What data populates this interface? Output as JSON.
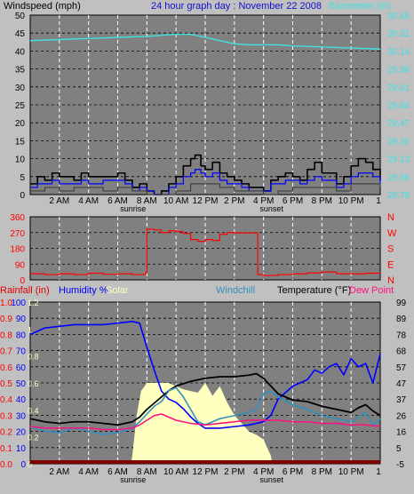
{
  "page": {
    "title": "24 hour graph day : November 22 2008",
    "colors": {
      "plot_bg": "#808080",
      "frame_bg": "#c0c0c0",
      "cyan": "#40e0e0",
      "blue": "#0000ff",
      "red": "#ff0000",
      "pink": "#ff1080",
      "black": "#000000",
      "yellow": "#ffffc0",
      "steel": "#3090c0",
      "darkred": "#800000"
    }
  },
  "x_axis": {
    "tick_labels": [
      "2 AM",
      "4 AM",
      "6 AM",
      "8 AM",
      "10 AM",
      "12 PM",
      "2 PM",
      "4 PM",
      "6 PM",
      "8 PM",
      "10 PM"
    ],
    "end_label": "1",
    "sunrise_label": "sunrise",
    "sunset_label": "sunset",
    "sunrise_hour": 7.05,
    "sunset_hour": 16.55
  },
  "chart_data": [
    {
      "type": "line",
      "title": "",
      "left_label": "Windspeed (mph)",
      "right_label": "Barometer (in)",
      "y_left": {
        "ticks": [
          0,
          5,
          10,
          15,
          20,
          25,
          30,
          35,
          40,
          45,
          50
        ],
        "range": [
          0,
          50
        ]
      },
      "y_right": {
        "ticks": [
          28.79,
          28.96,
          29.13,
          29.3,
          29.47,
          29.64,
          29.81,
          29.98,
          30.14,
          30.31,
          30.48
        ],
        "range": [
          28.79,
          30.48
        ]
      },
      "series": [
        {
          "name": "Barometer",
          "axis": "right",
          "color": "cyan",
          "x": [
            0,
            2,
            4,
            6,
            8,
            10,
            11,
            12,
            13,
            14,
            15,
            16,
            17,
            18,
            20,
            22,
            24
          ],
          "y": [
            30.24,
            30.25,
            30.26,
            30.27,
            30.28,
            30.3,
            30.3,
            30.27,
            30.24,
            30.21,
            30.2,
            30.2,
            30.2,
            30.19,
            30.18,
            30.17,
            30.16
          ]
        },
        {
          "name": "Wind gust",
          "axis": "left",
          "color": "black",
          "x": [
            0,
            0.5,
            1,
            1.5,
            2,
            3,
            3.5,
            4,
            5,
            6,
            6.5,
            7,
            7.5,
            8,
            8.5,
            9,
            9.5,
            10,
            10.5,
            11,
            11.3,
            11.7,
            12,
            12.5,
            13,
            13.5,
            14,
            14.5,
            15,
            16,
            16.5,
            17,
            17.5,
            18,
            18.5,
            19,
            19.5,
            20,
            21,
            21.5,
            22,
            22.5,
            23,
            23.5,
            24
          ],
          "y": [
            3,
            5,
            4,
            6,
            5,
            4,
            6,
            5,
            5,
            6,
            4,
            2,
            3,
            1,
            0,
            1,
            3,
            5,
            8,
            10,
            11,
            8,
            7,
            9,
            6,
            5,
            4,
            3,
            2,
            1,
            4,
            5,
            6,
            5,
            4,
            7,
            9,
            6,
            3,
            5,
            8,
            10,
            9,
            7,
            4
          ]
        },
        {
          "name": "Wind speed",
          "axis": "left",
          "color": "blue",
          "x": [
            0,
            0.5,
            1,
            1.5,
            2,
            3,
            3.5,
            4,
            5,
            6,
            6.5,
            7,
            7.5,
            8,
            8.5,
            9,
            9.5,
            10,
            10.5,
            11,
            11.3,
            11.7,
            12,
            12.5,
            13,
            13.5,
            14,
            14.5,
            15,
            16,
            16.5,
            17,
            17.5,
            18,
            18.5,
            19,
            19.5,
            20,
            21,
            21.5,
            22,
            22.5,
            23,
            23.5,
            24
          ],
          "y": [
            2,
            3,
            3,
            4,
            3,
            3,
            4,
            3,
            4,
            4,
            3,
            1,
            2,
            1,
            0,
            0,
            2,
            3,
            5,
            6,
            7,
            6,
            5,
            6,
            4,
            3,
            3,
            2,
            1,
            1,
            3,
            3,
            4,
            4,
            3,
            4,
            5,
            4,
            2,
            3,
            5,
            6,
            6,
            5,
            3
          ]
        },
        {
          "name": "Wind avg",
          "axis": "left",
          "color": "darkgray",
          "x": [
            0,
            1,
            2,
            3,
            4,
            5,
            6,
            7,
            8,
            9,
            10,
            11,
            12,
            13,
            14,
            15,
            16,
            17,
            18,
            19,
            20,
            21,
            22,
            23,
            24
          ],
          "y": [
            1,
            2,
            1,
            2,
            2,
            1,
            2,
            1,
            0,
            0,
            1,
            3,
            3,
            2,
            1,
            1,
            0,
            1,
            2,
            2,
            2,
            1,
            3,
            3,
            2
          ]
        }
      ]
    },
    {
      "type": "line",
      "title": "",
      "y_left": {
        "ticks": [
          0,
          90,
          180,
          270,
          360
        ],
        "range": [
          0,
          360
        ]
      },
      "y_right_labels": [
        "N",
        "W",
        "S",
        "E",
        "N"
      ],
      "series": [
        {
          "name": "Wind direction",
          "color": "red",
          "x": [
            0,
            1,
            2,
            3,
            4,
            5,
            6,
            7,
            7.9,
            8.0,
            8.5,
            9,
            9.5,
            10,
            10.5,
            11,
            11.5,
            12,
            12.5,
            13,
            13.5,
            14,
            15,
            15.5,
            15.6,
            16,
            17,
            18,
            19,
            20,
            21,
            22,
            23,
            24
          ],
          "y": [
            35,
            30,
            35,
            30,
            38,
            32,
            35,
            30,
            40,
            290,
            285,
            270,
            280,
            275,
            265,
            230,
            220,
            230,
            225,
            260,
            270,
            268,
            268,
            268,
            30,
            25,
            30,
            35,
            40,
            45,
            35,
            35,
            38,
            40
          ]
        }
      ]
    },
    {
      "type": "line",
      "title": "",
      "legend": [
        "Rainfall (in)",
        "Humidity %",
        "Solar",
        "Windchill",
        "Temperature (°F)",
        "Dew Point"
      ],
      "y_rain": {
        "ticks": [
          0.0,
          0.1,
          0.2,
          0.3,
          0.4,
          0.5,
          0.6,
          0.7,
          0.8,
          0.9,
          1.0
        ],
        "range": [
          0,
          1
        ]
      },
      "y_humidity": {
        "ticks": [
          0,
          10,
          20,
          30,
          40,
          50,
          60,
          70,
          80,
          90,
          100
        ],
        "range": [
          0,
          100
        ]
      },
      "y_solar": {
        "ticks": [
          0,
          0.2,
          0.4,
          0.6,
          0.8,
          1.0,
          1.2
        ]
      },
      "y_temp": {
        "ticks": [
          -5,
          5,
          16,
          26,
          37,
          47,
          57,
          68,
          78,
          89,
          99
        ],
        "range": [
          -5,
          99
        ]
      },
      "series": [
        {
          "name": "Solar",
          "axis": "humidity",
          "color": "yellow",
          "x": [
            0,
            6.9,
            7.0,
            7.3,
            7.6,
            8.0,
            8.5,
            9,
            9.5,
            10,
            10.5,
            11,
            11.5,
            12,
            12.5,
            13,
            13.5,
            14,
            14.5,
            15,
            15.5,
            16,
            16.5,
            16.6,
            24
          ],
          "y": [
            0,
            0,
            5,
            30,
            45,
            50,
            50,
            50,
            50,
            48,
            46,
            45,
            44,
            50,
            42,
            48,
            38,
            30,
            25,
            20,
            18,
            15,
            5,
            0,
            0
          ]
        },
        {
          "name": "Humidity",
          "axis": "humidity",
          "color": "blue",
          "x": [
            0,
            1,
            2,
            3,
            4,
            5,
            6,
            7,
            7.5,
            8,
            8.5,
            9,
            9.5,
            10,
            10.5,
            11,
            11.5,
            12,
            13,
            14,
            15,
            16,
            16.5,
            17,
            18,
            19,
            19.5,
            20,
            20.5,
            21,
            21.5,
            22,
            22.5,
            23,
            23.5,
            24
          ],
          "y": [
            80,
            84,
            85,
            86,
            86,
            86,
            87,
            88,
            87,
            72,
            58,
            45,
            40,
            38,
            34,
            29,
            25,
            22,
            22,
            23,
            24,
            26,
            30,
            40,
            48,
            52,
            58,
            56,
            60,
            62,
            55,
            65,
            60,
            62,
            50,
            68
          ]
        },
        {
          "name": "Temperature",
          "axis": "temp",
          "color": "black",
          "x": [
            0,
            1,
            2,
            3,
            4,
            5,
            6,
            7,
            7.5,
            8,
            8.5,
            9,
            9.5,
            10,
            11,
            12,
            13,
            14,
            15,
            15.5,
            16,
            16.5,
            17,
            18,
            19,
            20,
            21,
            22,
            22.5,
            23,
            23.5,
            24
          ],
          "y": [
            24,
            22,
            21,
            22,
            22,
            21,
            20,
            22,
            25,
            30,
            34,
            38,
            42,
            45,
            48,
            50,
            51,
            51,
            52,
            53,
            50,
            45,
            40,
            36,
            35,
            32,
            30,
            28,
            31,
            33,
            29,
            26
          ]
        },
        {
          "name": "Windchill",
          "axis": "temp",
          "color": "steel",
          "x": [
            0,
            1,
            2,
            3,
            4,
            5,
            6,
            7,
            7.5,
            8,
            8.5,
            9,
            9.5,
            10,
            10.5,
            11,
            11.5,
            12,
            13,
            14,
            15,
            15.5,
            16,
            16.5,
            17,
            18,
            19,
            20,
            21,
            22,
            22.5,
            23,
            23.5,
            24
          ],
          "y": [
            19,
            16,
            15,
            18,
            16,
            14,
            15,
            18,
            22,
            27,
            32,
            35,
            42,
            44,
            38,
            30,
            22,
            20,
            24,
            26,
            28,
            30,
            40,
            42,
            38,
            33,
            30,
            26,
            24,
            22,
            25,
            28,
            20,
            24
          ]
        },
        {
          "name": "Dew Point",
          "axis": "temp",
          "color": "pink",
          "x": [
            0,
            1,
            2,
            3,
            4,
            5,
            6,
            7,
            7.5,
            8,
            8.5,
            9,
            9.5,
            10,
            11,
            12,
            13,
            14,
            15,
            16,
            17,
            18,
            19,
            20,
            21,
            22,
            23,
            24
          ],
          "y": [
            19,
            18,
            18,
            18,
            18,
            17,
            17,
            18,
            20,
            23,
            26,
            27,
            25,
            23,
            21,
            20,
            21,
            22,
            23,
            23,
            23,
            22,
            22,
            21,
            21,
            20,
            20,
            19
          ]
        },
        {
          "name": "Rainfall",
          "axis": "rain",
          "color": "darkred",
          "x": [
            0,
            24
          ],
          "y": [
            0,
            0
          ]
        }
      ]
    }
  ]
}
